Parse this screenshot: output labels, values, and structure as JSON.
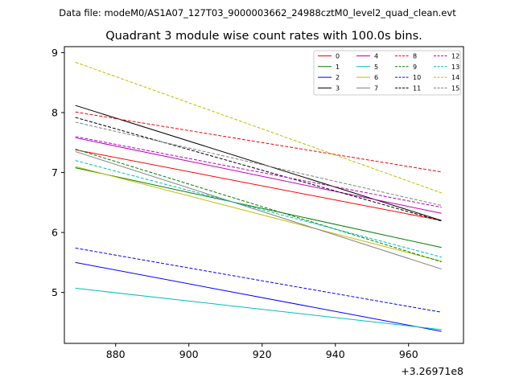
{
  "chart_data": {
    "type": "line",
    "suptitle": "Data file: modeM0/AS1A07_127T03_9000003662_24988cztM0_level2_quad_clean.evt",
    "title": "Quadrant 3 module wise count rates with 100.0s bins.",
    "xlabel": "",
    "ylabel": "",
    "x_offset_label": "+3.26971e8",
    "xlim": [
      866,
      975
    ],
    "ylim": [
      4.15,
      9.1
    ],
    "x_ticks": [
      880,
      900,
      920,
      940,
      960
    ],
    "x_tick_labels": [
      "880",
      "900",
      "920",
      "940",
      "960"
    ],
    "y_ticks": [
      5,
      6,
      7,
      8,
      9
    ],
    "y_tick_labels": [
      "5",
      "6",
      "7",
      "8",
      "9"
    ],
    "grid": false,
    "legend_position": "top-right",
    "legend_columns": 4,
    "x": [
      869,
      969
    ],
    "series": [
      {
        "name": "0",
        "values": [
          7.38,
          6.2
        ],
        "color": "#ff0000",
        "style": "solid"
      },
      {
        "name": "1",
        "values": [
          7.08,
          5.75
        ],
        "color": "#008000",
        "style": "solid"
      },
      {
        "name": "2",
        "values": [
          5.5,
          4.35
        ],
        "color": "#0000ff",
        "style": "solid"
      },
      {
        "name": "3",
        "values": [
          8.12,
          6.2
        ],
        "color": "#000000",
        "style": "solid"
      },
      {
        "name": "4",
        "values": [
          7.58,
          6.32
        ],
        "color": "#bf00bf",
        "style": "solid"
      },
      {
        "name": "5",
        "values": [
          5.07,
          4.38
        ],
        "color": "#00bfbf",
        "style": "solid"
      },
      {
        "name": "6",
        "values": [
          7.1,
          5.52
        ],
        "color": "#bfbf00",
        "style": "solid"
      },
      {
        "name": "7",
        "values": [
          7.35,
          5.39
        ],
        "color": "#808080",
        "style": "solid"
      },
      {
        "name": "8",
        "values": [
          8.01,
          7.01
        ],
        "color": "#ff0000",
        "style": "dashed"
      },
      {
        "name": "9",
        "values": [
          7.39,
          5.51
        ],
        "color": "#008000",
        "style": "dashed"
      },
      {
        "name": "10",
        "values": [
          5.74,
          4.67
        ],
        "color": "#0000ff",
        "style": "dashed"
      },
      {
        "name": "11",
        "values": [
          7.92,
          6.19
        ],
        "color": "#000000",
        "style": "dashed"
      },
      {
        "name": "12",
        "values": [
          7.6,
          6.42
        ],
        "color": "#bf00bf",
        "style": "dashed"
      },
      {
        "name": "13",
        "values": [
          7.2,
          5.59
        ],
        "color": "#00bfbf",
        "style": "dashed"
      },
      {
        "name": "14",
        "values": [
          8.84,
          6.66
        ],
        "color": "#bfbf00",
        "style": "dashed"
      },
      {
        "name": "15",
        "values": [
          7.84,
          6.45
        ],
        "color": "#808080",
        "style": "dashed"
      }
    ]
  }
}
